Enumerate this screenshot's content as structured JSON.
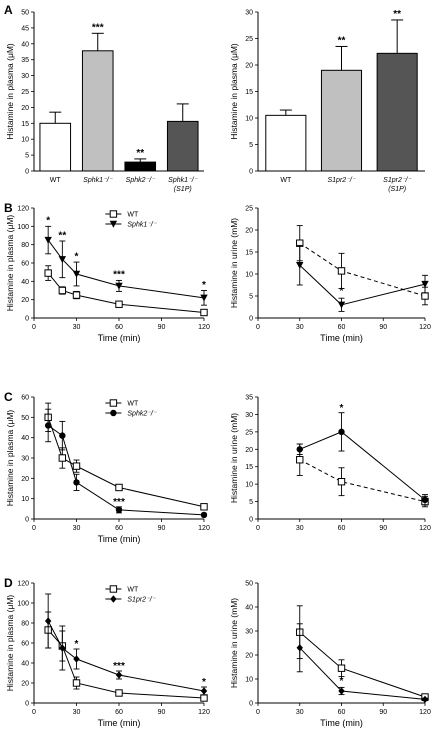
{
  "charts": [
    {
      "id": "A-left",
      "panel_letter": "A",
      "type": "bar",
      "ylabel": "Histamine in plasma (μM)",
      "ylim": [
        0,
        50
      ],
      "yticks": [
        0,
        5,
        10,
        15,
        20,
        25,
        30,
        35,
        40,
        45,
        50
      ],
      "categories": [
        "WT",
        "Sphk1⁻/⁻",
        "Sphk2⁻/⁻",
        "Sphk1⁻/⁻ (S1P)"
      ],
      "values": [
        15,
        37.8,
        2.8,
        15.6
      ],
      "errors": [
        3.5,
        5.5,
        1.0,
        5.5
      ],
      "fills": [
        "#ffffff",
        "#c0c0c0",
        "#000000",
        "#555555"
      ],
      "sig": [
        "",
        "***",
        "**",
        ""
      ]
    },
    {
      "id": "A-right",
      "panel_letter": "",
      "type": "bar",
      "ylabel": "Histamine in plasma (μM)",
      "ylim": [
        0,
        30
      ],
      "yticks": [
        0,
        5,
        10,
        15,
        20,
        25,
        30
      ],
      "categories": [
        "WT",
        "S1pr2⁻/⁻",
        "S1pr2⁻/⁻ (S1P)"
      ],
      "values": [
        10.5,
        19,
        22.2
      ],
      "errors": [
        1.0,
        4.5,
        6.3
      ],
      "fills": [
        "#ffffff",
        "#c0c0c0",
        "#555555"
      ],
      "sig": [
        "",
        "**",
        "**"
      ]
    },
    {
      "id": "B-left",
      "panel_letter": "B",
      "type": "line",
      "ylabel": "Histamine in plasma (μM)",
      "xlabel": "Time (min)",
      "xlim": [
        0,
        120
      ],
      "xticks": [
        0,
        30,
        60,
        90,
        120
      ],
      "ylim": [
        0,
        120
      ],
      "yticks": [
        0,
        20,
        40,
        60,
        80,
        100,
        120
      ],
      "legend": [
        "WT",
        "Sphk1⁻/⁻"
      ],
      "series": [
        {
          "name": "WT",
          "marker": "square-open",
          "dashed": false,
          "x": [
            10,
            20,
            30,
            60,
            120
          ],
          "y": [
            49,
            30,
            25,
            15,
            6
          ],
          "err": [
            8,
            4,
            4,
            2,
            2
          ]
        },
        {
          "name": "Sphk1⁻/⁻",
          "marker": "triangle-down",
          "dashed": false,
          "x": [
            10,
            20,
            30,
            60,
            120
          ],
          "y": [
            85,
            64,
            48,
            35,
            22
          ],
          "err": [
            15,
            20,
            13,
            6,
            8
          ]
        }
      ],
      "sig": [
        {
          "x": 10,
          "y": 103,
          "text": "*"
        },
        {
          "x": 20,
          "y": 87,
          "text": "**"
        },
        {
          "x": 30,
          "y": 64,
          "text": "*"
        },
        {
          "x": 60,
          "y": 44,
          "text": "***"
        },
        {
          "x": 120,
          "y": 33,
          "text": "*"
        }
      ]
    },
    {
      "id": "B-right",
      "panel_letter": "",
      "type": "line",
      "ylabel": "Histamine in urine (mM)",
      "xlabel": "Time (min)",
      "xlim": [
        0,
        120
      ],
      "xticks": [
        0,
        30,
        60,
        90,
        120
      ],
      "ylim": [
        0,
        25
      ],
      "yticks": [
        0,
        5,
        10,
        15,
        20,
        25
      ],
      "series": [
        {
          "name": "WT",
          "marker": "square-open",
          "dashed": true,
          "x": [
            30,
            60,
            120
          ],
          "y": [
            17,
            10.7,
            5
          ],
          "err": [
            4,
            4,
            2
          ]
        },
        {
          "name": "Sphk1⁻/⁻",
          "marker": "triangle-down",
          "dashed": false,
          "x": [
            30,
            60,
            120
          ],
          "y": [
            12,
            3,
            7.7
          ],
          "err": [
            4.5,
            1.5,
            2
          ]
        }
      ],
      "sig": [
        {
          "x": 60,
          "y": 5.5,
          "text": "*"
        }
      ]
    },
    {
      "id": "C-left",
      "panel_letter": "C",
      "type": "line",
      "ylabel": "Histamine in plasma (μM)",
      "xlabel": "Time (min)",
      "xlim": [
        0,
        120
      ],
      "xticks": [
        0,
        30,
        60,
        90,
        120
      ],
      "ylim": [
        0,
        60
      ],
      "yticks": [
        0,
        10,
        20,
        30,
        40,
        50,
        60
      ],
      "legend": [
        "WT",
        "Sphk2⁻/⁻"
      ],
      "series": [
        {
          "name": "WT",
          "marker": "square-open",
          "dashed": false,
          "x": [
            10,
            20,
            30,
            60,
            120
          ],
          "y": [
            50,
            30,
            26,
            15.5,
            6
          ],
          "err": [
            7,
            5,
            3,
            1.5,
            1
          ]
        },
        {
          "name": "Sphk2⁻/⁻",
          "marker": "circle",
          "dashed": false,
          "x": [
            10,
            20,
            30,
            60,
            120
          ],
          "y": [
            46,
            41,
            18,
            4.5,
            2
          ],
          "err": [
            8,
            7,
            4,
            1.5,
            0.5
          ]
        }
      ],
      "sig": [
        {
          "x": 60,
          "y": 7,
          "text": "***"
        }
      ]
    },
    {
      "id": "C-right",
      "panel_letter": "",
      "type": "line",
      "ylabel": "Histamine in urine (mM)",
      "xlabel": "",
      "xlim": [
        0,
        120
      ],
      "xticks": [
        0,
        30,
        60,
        90,
        120
      ],
      "ylim": [
        0,
        35
      ],
      "yticks": [
        0,
        5,
        10,
        15,
        20,
        25,
        30,
        35
      ],
      "series": [
        {
          "name": "WT",
          "marker": "square-open",
          "dashed": true,
          "x": [
            30,
            60,
            120
          ],
          "y": [
            17,
            10.7,
            5
          ],
          "err": [
            4.5,
            4,
            1.5
          ]
        },
        {
          "name": "Sphk2⁻/⁻",
          "marker": "circle",
          "dashed": false,
          "x": [
            30,
            60,
            120
          ],
          "y": [
            20,
            25,
            5.5
          ],
          "err": [
            1.5,
            5.5,
            1.5
          ]
        }
      ],
      "sig": [
        {
          "x": 60,
          "y": 31,
          "text": "*"
        }
      ]
    },
    {
      "id": "D-left",
      "panel_letter": "D",
      "type": "line",
      "ylabel": "Histamine in plasma (μM)",
      "xlabel": "Time (min)",
      "xlim": [
        0,
        120
      ],
      "xticks": [
        0,
        30,
        60,
        90,
        120
      ],
      "ylim": [
        0,
        120
      ],
      "yticks": [
        0,
        20,
        40,
        60,
        80,
        100,
        120
      ],
      "legend": [
        "WT",
        "S1pr2⁻/⁻"
      ],
      "series": [
        {
          "name": "WT",
          "marker": "square-open",
          "dashed": false,
          "x": [
            10,
            20,
            30,
            60,
            120
          ],
          "y": [
            73,
            57,
            20,
            10,
            5
          ],
          "err": [
            18,
            15,
            6,
            2,
            2
          ]
        },
        {
          "name": "S1pr2⁻/⁻",
          "marker": "diamond",
          "dashed": false,
          "x": [
            10,
            20,
            30,
            60,
            120
          ],
          "y": [
            82,
            55,
            44,
            28,
            12
          ],
          "err": [
            27,
            22,
            10,
            4,
            4
          ]
        }
      ],
      "sig": [
        {
          "x": 30,
          "y": 56,
          "text": "*"
        },
        {
          "x": 60,
          "y": 34,
          "text": "***"
        },
        {
          "x": 120,
          "y": 18,
          "text": "*"
        }
      ]
    },
    {
      "id": "D-right",
      "panel_letter": "",
      "type": "line",
      "ylabel": "Histamine in urine (mM)",
      "xlabel": "Time (min)",
      "xlim": [
        0,
        120
      ],
      "xticks": [
        0,
        30,
        60,
        90,
        120
      ],
      "ylim": [
        0,
        50
      ],
      "yticks": [
        0,
        10,
        20,
        30,
        40,
        50
      ],
      "series": [
        {
          "name": "WT",
          "marker": "square-open",
          "dashed": false,
          "x": [
            30,
            60,
            120
          ],
          "y": [
            29.5,
            14.5,
            2.5
          ],
          "err": [
            11,
            3.5,
            1
          ]
        },
        {
          "name": "S1pr2⁻/⁻",
          "marker": "diamond",
          "dashed": false,
          "x": [
            30,
            60,
            120
          ],
          "y": [
            23,
            5,
            1.5
          ],
          "err": [
            10,
            1.5,
            0.5
          ]
        }
      ],
      "sig": [
        {
          "x": 60,
          "y": 8,
          "text": "*"
        }
      ]
    }
  ]
}
